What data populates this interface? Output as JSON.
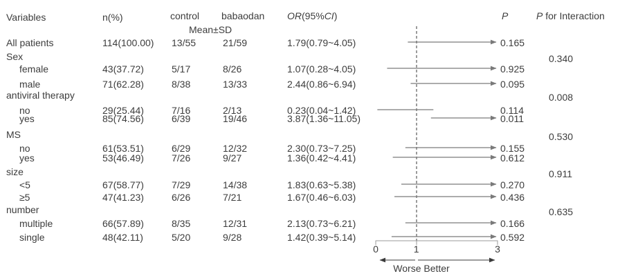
{
  "headers": {
    "variables": "Variables",
    "n_pct": "n(%)",
    "control": "control",
    "babaodan": "babaodan",
    "mean_sd": "Mean±SD",
    "or_ci": {
      "italic1": "OR",
      "normal1": "(95%",
      "italic2": "CI",
      "normal2": ")"
    },
    "p": "P",
    "p_interaction": {
      "italic": "P",
      "rest": " for Interaction"
    }
  },
  "chart_data": {
    "type": "forest",
    "title": "Subgroup forest plot of OR (95% CI) for babaodan vs control",
    "or_axis": {
      "ticks": [
        "0",
        "1",
        "3"
      ],
      "tick_values": [
        0,
        1,
        3
      ],
      "min": 0,
      "max": 3,
      "reference_line": 1,
      "direction_text": "Worse Better",
      "left_direction": "Worse",
      "right_direction": "Better",
      "clipped_ci_arrow": true
    },
    "rows": [
      {
        "label": "All patients",
        "indent": false,
        "n": "114(100.00)",
        "control": "13/55",
        "babaodan": "21/59",
        "or_ci": "1.79(0.79~4.05)",
        "or": 1.79,
        "ci_low": 0.79,
        "ci_high": 4.05,
        "p": "0.165"
      },
      {
        "label": "Sex",
        "indent": false,
        "p_for_interaction": "0.340"
      },
      {
        "label": "female",
        "indent": true,
        "n": "43(37.72)",
        "control": "5/17",
        "babaodan": "8/26",
        "or_ci": "1.07(0.28~4.05)",
        "or": 1.07,
        "ci_low": 0.28,
        "ci_high": 4.05,
        "p": "0.925"
      },
      {
        "label": "male",
        "indent": true,
        "n": "71(62.28)",
        "control": "8/38",
        "babaodan": "13/33",
        "or_ci": "2.44(0.86~6.94)",
        "or": 2.44,
        "ci_low": 0.86,
        "ci_high": 6.94,
        "p": "0.095"
      },
      {
        "label": "antiviral therapy",
        "indent": false,
        "p_for_interaction": "0.008"
      },
      {
        "label": "no",
        "indent": true,
        "n": "29(25.44)",
        "control": "7/16",
        "babaodan": "2/13",
        "or_ci": "0.23(0.04~1.42)",
        "or": 0.23,
        "ci_low": 0.04,
        "ci_high": 1.42,
        "p": "0.114"
      },
      {
        "label": "yes",
        "indent": true,
        "n": "85(74.56)",
        "control": "6/39",
        "babaodan": "19/46",
        "or_ci": "3.87(1.36~11.05)",
        "or": 3.87,
        "ci_low": 1.36,
        "ci_high": 11.05,
        "p": "0.011"
      },
      {
        "label": "MS",
        "indent": false,
        "p_for_interaction": "0.530"
      },
      {
        "label": "no",
        "indent": true,
        "n": "61(53.51)",
        "control": "6/29",
        "babaodan": "12/32",
        "or_ci": "2.30(0.73~7.25)",
        "or": 2.3,
        "ci_low": 0.73,
        "ci_high": 7.25,
        "p": "0.155"
      },
      {
        "label": "yes",
        "indent": true,
        "n": "53(46.49)",
        "control": "7/26",
        "babaodan": "9/27",
        "or_ci": "1.36(0.42~4.41)",
        "or": 1.36,
        "ci_low": 0.42,
        "ci_high": 4.41,
        "p": "0.612"
      },
      {
        "label": "size",
        "indent": false,
        "p_for_interaction": "0.911"
      },
      {
        "label": "<5",
        "indent": true,
        "n": "67(58.77)",
        "control": "7/29",
        "babaodan": "14/38",
        "or_ci": "1.83(0.63~5.38)",
        "or": 1.83,
        "ci_low": 0.63,
        "ci_high": 5.38,
        "p": "0.270"
      },
      {
        "label": "≥5",
        "indent": true,
        "n": "47(41.23)",
        "control": "6/26",
        "babaodan": "7/21",
        "or_ci": "1.67(0.46~6.03)",
        "or": 1.67,
        "ci_low": 0.46,
        "ci_high": 6.03,
        "p": "0.436"
      },
      {
        "label": "number",
        "indent": false,
        "p_for_interaction": "0.635"
      },
      {
        "label": "multiple",
        "indent": true,
        "n": "66(57.89)",
        "control": "8/35",
        "babaodan": "12/31",
        "or_ci": "2.13(0.73~6.21)",
        "or": 2.13,
        "ci_low": 0.73,
        "ci_high": 6.21,
        "p": "0.166"
      },
      {
        "label": "single",
        "indent": true,
        "n": "48(42.11)",
        "control": "5/20",
        "babaodan": "9/28",
        "or_ci": "1.42(0.39~5.14)",
        "or": 1.42,
        "ci_low": 0.39,
        "ci_high": 5.14,
        "p": "0.592"
      }
    ],
    "colors": {
      "text": "#3c3c3c",
      "ci_line": "#7a7a7a",
      "reference_line": "#4a4a4a",
      "axis_bracket": "#9a9a9a",
      "direction_arrows": "#3a3a3a"
    }
  }
}
